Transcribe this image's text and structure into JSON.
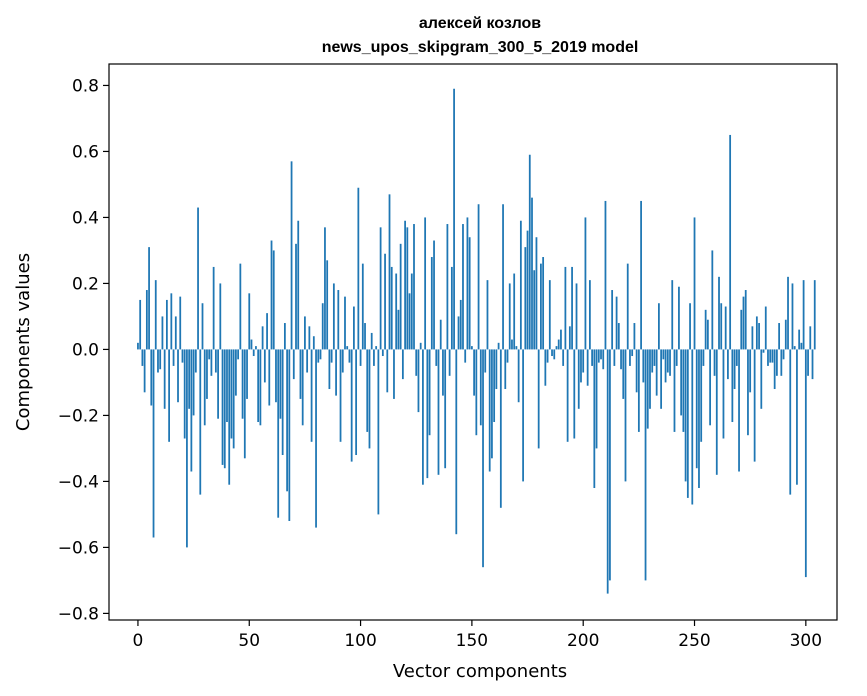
{
  "chart_data": {
    "type": "bar",
    "title_line1": "алексей козлов",
    "title_line2": "news_upos_skipgram_300_5_2019 model",
    "xlabel": "Vector components",
    "ylabel": "Components values",
    "xlim": [
      -13,
      314
    ],
    "ylim": [
      -0.82,
      0.865
    ],
    "xticks": [
      0,
      50,
      100,
      150,
      200,
      250,
      300
    ],
    "xtick_labels": [
      "0",
      "50",
      "100",
      "150",
      "200",
      "250",
      "300"
    ],
    "yticks": [
      0.8,
      0.6,
      0.4,
      0.2,
      0.0,
      -0.2,
      -0.4,
      -0.6,
      -0.8
    ],
    "ytick_labels": [
      "0.8",
      "0.6",
      "0.4",
      "0.2",
      "0.0",
      "−0.2",
      "−0.4",
      "−0.6",
      "−0.8"
    ],
    "bar_color": "#1f77b4",
    "values": [
      0.02,
      0.15,
      -0.05,
      -0.13,
      0.18,
      0.31,
      -0.17,
      -0.57,
      0.21,
      -0.07,
      -0.06,
      0.1,
      -0.18,
      0.15,
      -0.28,
      0.17,
      -0.05,
      0.1,
      -0.16,
      0.16,
      -0.04,
      -0.27,
      -0.6,
      -0.18,
      -0.37,
      -0.2,
      -0.07,
      0.43,
      -0.44,
      0.14,
      -0.23,
      -0.15,
      -0.03,
      -0.08,
      0.25,
      -0.07,
      -0.21,
      0.2,
      -0.35,
      -0.36,
      -0.22,
      -0.41,
      -0.27,
      -0.3,
      -0.14,
      -0.03,
      0.26,
      -0.21,
      -0.33,
      -0.15,
      0.17,
      0.03,
      -0.02,
      0.01,
      -0.22,
      -0.23,
      0.07,
      -0.1,
      0.11,
      -0.17,
      0.33,
      0.3,
      -0.16,
      -0.51,
      -0.21,
      -0.32,
      0.08,
      -0.43,
      -0.52,
      0.57,
      -0.09,
      0.32,
      0.39,
      -0.15,
      -0.23,
      0.1,
      -0.07,
      0.07,
      -0.28,
      0.04,
      -0.54,
      -0.04,
      -0.03,
      0.14,
      0.37,
      0.27,
      -0.12,
      -0.04,
      0.2,
      -0.14,
      0.18,
      -0.28,
      -0.07,
      0.16,
      0.01,
      -0.04,
      -0.34,
      0.13,
      -0.32,
      0.49,
      -0.05,
      0.26,
      0.08,
      -0.25,
      -0.3,
      0.05,
      -0.05,
      0.01,
      -0.5,
      0.37,
      -0.02,
      0.29,
      -0.13,
      0.47,
      0.25,
      -0.15,
      0.23,
      0.12,
      0.32,
      -0.09,
      0.39,
      0.37,
      0.17,
      0.23,
      0.38,
      -0.08,
      -0.19,
      0.02,
      -0.41,
      0.4,
      -0.39,
      -0.26,
      0.28,
      0.33,
      -0.05,
      -0.38,
      0.09,
      -0.14,
      -0.36,
      0.38,
      -0.08,
      0.25,
      0.79,
      -0.56,
      0.1,
      0.15,
      0.38,
      -0.04,
      0.4,
      0.34,
      0.01,
      -0.14,
      -0.26,
      0.44,
      -0.23,
      -0.66,
      -0.07,
      0.21,
      -0.37,
      -0.33,
      -0.22,
      -0.12,
      0.02,
      -0.48,
      0.44,
      -0.12,
      -0.04,
      0.2,
      0.03,
      0.23,
      0.01,
      -0.16,
      0.39,
      -0.4,
      0.31,
      0.36,
      0.59,
      0.46,
      0.24,
      0.34,
      -0.3,
      0.26,
      0.28,
      -0.11,
      -0.04,
      0.21,
      -0.02,
      -0.03,
      0.01,
      0.03,
      0.06,
      -0.05,
      0.25,
      -0.28,
      0.07,
      0.25,
      -0.27,
      0.2,
      -0.18,
      -0.1,
      -0.07,
      0.4,
      -0.11,
      0.21,
      -0.05,
      -0.42,
      -0.3,
      -0.04,
      -0.03,
      -0.06,
      0.45,
      -0.74,
      -0.7,
      0.18,
      -0.05,
      0.16,
      0.08,
      -0.06,
      -0.15,
      -0.4,
      0.26,
      -0.05,
      -0.02,
      0.08,
      -0.13,
      -0.25,
      0.45,
      -0.1,
      -0.7,
      -0.24,
      -0.18,
      -0.07,
      -0.05,
      -0.14,
      0.14,
      -0.18,
      -0.03,
      -0.1,
      -0.07,
      -0.08,
      0.21,
      -0.25,
      -0.05,
      0.19,
      -0.2,
      -0.25,
      -0.4,
      -0.45,
      0.14,
      -0.47,
      0.4,
      -0.36,
      -0.42,
      -0.28,
      -0.05,
      0.12,
      0.09,
      -0.23,
      0.3,
      -0.08,
      -0.38,
      0.22,
      0.14,
      -0.27,
      0.13,
      -0.09,
      0.65,
      -0.22,
      -0.12,
      -0.05,
      -0.37,
      0.12,
      0.16,
      0.18,
      -0.26,
      -0.13,
      0.07,
      -0.34,
      0.1,
      0.08,
      -0.18,
      -0.01,
      0.13,
      -0.05,
      -0.04,
      -0.04,
      -0.12,
      -0.08,
      0.08,
      -0.08,
      -0.03,
      0.09,
      0.22,
      -0.44,
      0.2,
      0.01,
      -0.41,
      0.06,
      0.02,
      0.21,
      -0.69,
      -0.08,
      0.07,
      -0.09,
      0.21
    ]
  }
}
